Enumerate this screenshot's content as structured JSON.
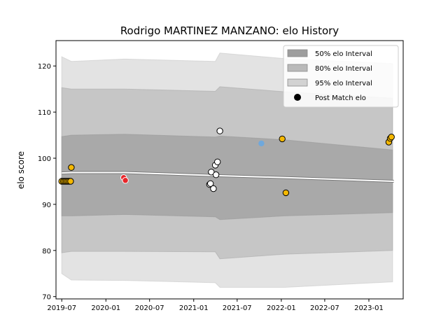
{
  "chart_data": {
    "type": "area",
    "title": "Rodrigo MARTINEZ MANZANO: elo History",
    "xlabel": "",
    "ylabel": "elo score",
    "x_range": [
      "2019-06-07",
      "2023-05-24"
    ],
    "ylim": [
      69.5,
      125.5
    ],
    "x_ticks": [
      {
        "date": "2019-07-01",
        "label": "2019-07"
      },
      {
        "date": "2020-01-01",
        "label": "2020-01"
      },
      {
        "date": "2020-07-01",
        "label": "2020-07"
      },
      {
        "date": "2021-01-01",
        "label": "2021-01"
      },
      {
        "date": "2021-07-01",
        "label": "2021-07"
      },
      {
        "date": "2022-01-01",
        "label": "2022-01"
      },
      {
        "date": "2022-07-01",
        "label": "2022-07"
      },
      {
        "date": "2023-01-01",
        "label": "2023-01"
      }
    ],
    "y_ticks": [
      70,
      80,
      90,
      100,
      110,
      120
    ],
    "grid": false,
    "legend_position": "top-right",
    "legend": [
      {
        "label": "50% elo Interval",
        "kind": "band",
        "color": "#999999",
        "opacity": 0.65
      },
      {
        "label": "80% elo Interval",
        "kind": "band",
        "color": "#aaaaaa",
        "opacity": 0.5
      },
      {
        "label": "95% elo Interval",
        "kind": "band",
        "color": "#c8c8c8",
        "opacity": 0.5
      },
      {
        "label": "Post Match elo",
        "kind": "marker",
        "color": "#000000"
      }
    ],
    "mean_line": {
      "color": "#ffffff",
      "points": [
        {
          "date": "2019-07-01",
          "value": 96.8
        },
        {
          "date": "2019-08-15",
          "value": 96.9
        },
        {
          "date": "2020-03-20",
          "value": 96.9
        },
        {
          "date": "2021-05-01",
          "value": 96.2
        },
        {
          "date": "2022-01-20",
          "value": 95.8
        },
        {
          "date": "2023-04-15",
          "value": 95.0
        }
      ]
    },
    "bands": [
      {
        "name": "95% elo Interval",
        "color": "#c8c8c8",
        "opacity": 0.5,
        "points": [
          {
            "date": "2019-07-01",
            "upper": 122.0,
            "lower": 75.0
          },
          {
            "date": "2019-08-10",
            "upper": 121.0,
            "lower": 73.6
          },
          {
            "date": "2020-03-20",
            "upper": 121.5,
            "lower": 73.5
          },
          {
            "date": "2021-04-01",
            "upper": 121.0,
            "lower": 73.0
          },
          {
            "date": "2021-04-20",
            "upper": 122.8,
            "lower": 72.0
          },
          {
            "date": "2022-01-15",
            "upper": 121.6,
            "lower": 72.0
          },
          {
            "date": "2023-04-10",
            "upper": 120.5,
            "lower": 73.2
          }
        ]
      },
      {
        "name": "80% elo Interval",
        "color": "#aaaaaa",
        "opacity": 0.5,
        "points": [
          {
            "date": "2019-07-01",
            "upper": 115.3,
            "lower": 79.5
          },
          {
            "date": "2019-08-10",
            "upper": 115.0,
            "lower": 79.8
          },
          {
            "date": "2020-03-20",
            "upper": 115.0,
            "lower": 79.8
          },
          {
            "date": "2021-04-01",
            "upper": 114.5,
            "lower": 79.7
          },
          {
            "date": "2021-04-20",
            "upper": 115.5,
            "lower": 78.2
          },
          {
            "date": "2022-01-15",
            "upper": 114.4,
            "lower": 79.2
          },
          {
            "date": "2023-04-10",
            "upper": 113.0,
            "lower": 80.0
          }
        ]
      },
      {
        "name": "50% elo Interval",
        "color": "#999999",
        "opacity": 0.65,
        "points": [
          {
            "date": "2019-07-01",
            "upper": 104.7,
            "lower": 87.5
          },
          {
            "date": "2019-08-10",
            "upper": 105.0,
            "lower": 87.5
          },
          {
            "date": "2020-03-20",
            "upper": 105.2,
            "lower": 87.8
          },
          {
            "date": "2021-04-01",
            "upper": 104.6,
            "lower": 87.3
          },
          {
            "date": "2021-04-20",
            "upper": 104.8,
            "lower": 86.7
          },
          {
            "date": "2022-01-15",
            "upper": 104.0,
            "lower": 87.5
          },
          {
            "date": "2023-04-10",
            "upper": 101.8,
            "lower": 88.2
          }
        ]
      }
    ],
    "series": [
      {
        "name": "Post Match elo",
        "points": [
          {
            "date": "2019-07-01",
            "value": 95.0,
            "color": "#f5b800"
          },
          {
            "date": "2019-07-08",
            "value": 95.0,
            "color": "#f5b800"
          },
          {
            "date": "2019-07-14",
            "value": 95.0,
            "color": "#f5b800"
          },
          {
            "date": "2019-07-20",
            "value": 95.0,
            "color": "#f5b800"
          },
          {
            "date": "2019-07-26",
            "value": 95.0,
            "color": "#f5b800"
          },
          {
            "date": "2019-08-01",
            "value": 95.0,
            "color": "#f5b800"
          },
          {
            "date": "2019-08-07",
            "value": 95.0,
            "color": "#f5b800"
          },
          {
            "date": "2019-08-10",
            "value": 98.0,
            "color": "#f5b800"
          },
          {
            "date": "2020-03-15",
            "value": 95.8,
            "color": "#e8262a"
          },
          {
            "date": "2020-03-22",
            "value": 95.2,
            "color": "#e8262a"
          },
          {
            "date": "2021-03-08",
            "value": 94.3,
            "color": "#ffffff"
          },
          {
            "date": "2021-03-12",
            "value": 94.5,
            "color": "#ffffff"
          },
          {
            "date": "2021-03-15",
            "value": 97.0,
            "color": "#ffffff"
          },
          {
            "date": "2021-03-24",
            "value": 93.4,
            "color": "#ffffff"
          },
          {
            "date": "2021-04-01",
            "value": 98.5,
            "color": "#ffffff"
          },
          {
            "date": "2021-04-04",
            "value": 96.4,
            "color": "#ffffff"
          },
          {
            "date": "2021-04-10",
            "value": 99.2,
            "color": "#ffffff"
          },
          {
            "date": "2021-04-20",
            "value": 105.9,
            "color": "#ffffff"
          },
          {
            "date": "2021-10-10",
            "value": 103.2,
            "color": "#6fa8dc"
          },
          {
            "date": "2022-01-05",
            "value": 104.2,
            "color": "#f5b800"
          },
          {
            "date": "2022-01-20",
            "value": 92.5,
            "color": "#f5b800"
          },
          {
            "date": "2023-03-25",
            "value": 103.5,
            "color": "#f5b800"
          },
          {
            "date": "2023-03-31",
            "value": 104.3,
            "color": "#f5b800"
          },
          {
            "date": "2023-04-05",
            "value": 104.6,
            "color": "#f5b800"
          }
        ]
      }
    ]
  }
}
